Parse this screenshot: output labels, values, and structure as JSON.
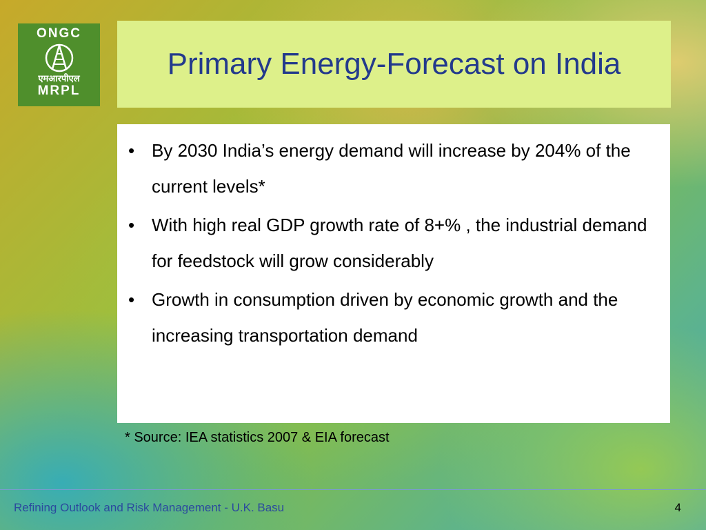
{
  "logo": {
    "top_text": "ONGC",
    "hindi_text": "एमआरपीएल",
    "bottom_text": "MRPL",
    "color": "#4f8f2c"
  },
  "slide": {
    "title": "Primary Energy-Forecast on India",
    "bullet_marker": "•",
    "bullets": [
      "By 2030 India’s energy demand will increase by 204% of the current levels*",
      "With high real GDP growth rate of 8+% , the industrial demand for feedstock will grow considerably",
      "Growth in consumption driven by economic growth and the increasing transportation demand"
    ],
    "footnote": "* Source: IEA statistics 2007 & EIA forecast"
  },
  "footer": {
    "text": "Refining Outlook and Risk Management - U.K. Basu",
    "page_number": "4"
  },
  "colors": {
    "title_box": "#ddf08a",
    "title_text": "#233a8c",
    "footer_text": "#2b4a9e"
  }
}
